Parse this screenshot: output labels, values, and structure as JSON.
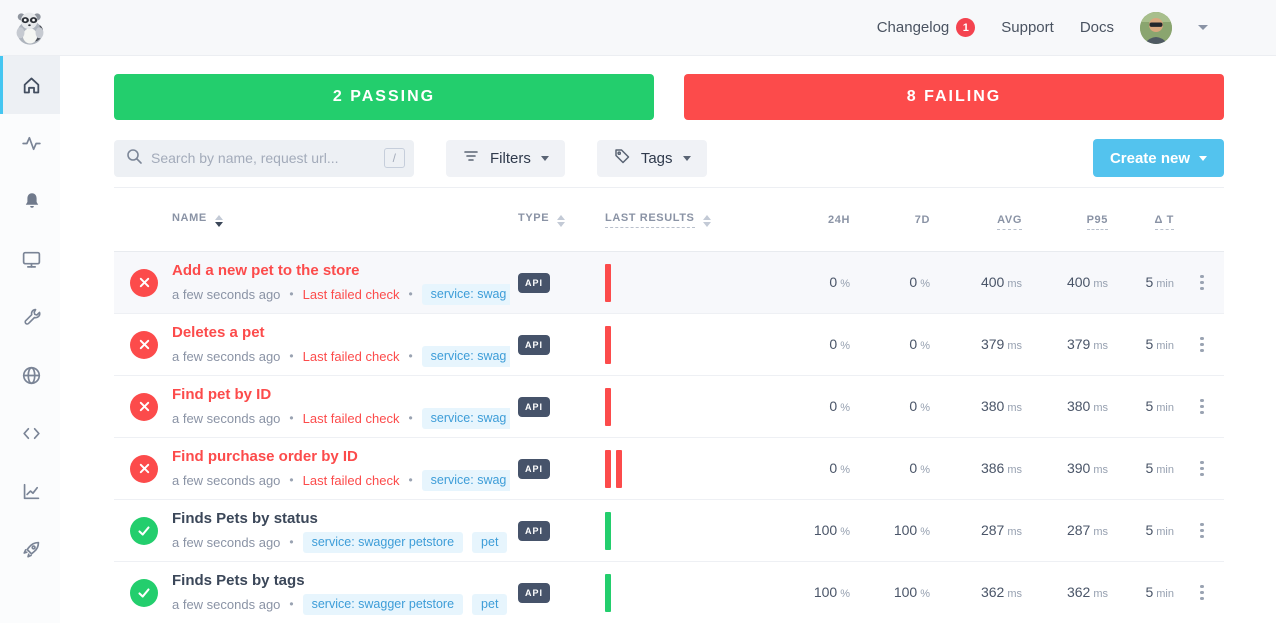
{
  "navbar": {
    "changelog_label": "Changelog",
    "changelog_badge": "1",
    "support_label": "Support",
    "docs_label": "Docs"
  },
  "sidebar": {
    "items": [
      {
        "icon": "home",
        "active": true
      },
      {
        "icon": "activity",
        "active": false
      },
      {
        "icon": "bell",
        "active": false
      },
      {
        "icon": "monitor",
        "active": false
      },
      {
        "icon": "wrench",
        "active": false
      },
      {
        "icon": "globe",
        "active": false
      },
      {
        "icon": "code",
        "active": false
      },
      {
        "icon": "chart",
        "active": false
      },
      {
        "icon": "rocket",
        "active": false
      }
    ]
  },
  "summary": {
    "passing_label": "2 PASSING",
    "failing_label": "8 FAILING"
  },
  "toolbar": {
    "search_placeholder": "Search by name, request url...",
    "search_shortcut": "/",
    "filters_label": "Filters",
    "tags_label": "Tags",
    "create_new_label": "Create new"
  },
  "table": {
    "headers": {
      "name": "NAME",
      "type": "TYPE",
      "last_results": "LAST RESULTS",
      "h24": "24H",
      "d7": "7D",
      "avg": "AVG",
      "p95": "P95",
      "delta_t": "Δ T"
    },
    "units": {
      "h24": "%",
      "d7": "%",
      "avg": "ms",
      "p95": "ms",
      "delta_t": "min"
    },
    "rows": [
      {
        "name": "Add a new pet to the store",
        "status": "failing",
        "updated": "a few seconds ago",
        "note": "Last failed check",
        "tags": [
          "service: swag"
        ],
        "type": "API",
        "results": [
          "failing"
        ],
        "h24": "0",
        "d7": "0",
        "avg": "400",
        "p95": "400",
        "delta_t": "5",
        "highlighted": true
      },
      {
        "name": "Deletes a pet",
        "status": "failing",
        "updated": "a few seconds ago",
        "note": "Last failed check",
        "tags": [
          "service: swag"
        ],
        "type": "API",
        "results": [
          "failing"
        ],
        "h24": "0",
        "d7": "0",
        "avg": "379",
        "p95": "379",
        "delta_t": "5",
        "highlighted": false
      },
      {
        "name": "Find pet by ID",
        "status": "failing",
        "updated": "a few seconds ago",
        "note": "Last failed check",
        "tags": [
          "service: swag"
        ],
        "type": "API",
        "results": [
          "failing"
        ],
        "h24": "0",
        "d7": "0",
        "avg": "380",
        "p95": "380",
        "delta_t": "5",
        "highlighted": false
      },
      {
        "name": "Find purchase order by ID",
        "status": "failing",
        "updated": "a few seconds ago",
        "note": "Last failed check",
        "tags": [
          "service: swag"
        ],
        "type": "API",
        "results": [
          "failing",
          "failing"
        ],
        "h24": "0",
        "d7": "0",
        "avg": "386",
        "p95": "390",
        "delta_t": "5",
        "highlighted": false
      },
      {
        "name": "Finds Pets by status",
        "status": "passing",
        "updated": "a few seconds ago",
        "note": null,
        "tags": [
          "service: swagger petstore",
          "pet"
        ],
        "type": "API",
        "results": [
          "passing"
        ],
        "h24": "100",
        "d7": "100",
        "avg": "287",
        "p95": "287",
        "delta_t": "5",
        "highlighted": false
      },
      {
        "name": "Finds Pets by tags",
        "status": "passing",
        "updated": "a few seconds ago",
        "note": null,
        "tags": [
          "service: swagger petstore",
          "pet"
        ],
        "type": "API",
        "results": [
          "passing"
        ],
        "h24": "100",
        "d7": "100",
        "avg": "362",
        "p95": "362",
        "delta_t": "5",
        "highlighted": false
      }
    ]
  },
  "colors": {
    "passing_green": "#23ce6d",
    "failing_red": "#fc4b4b",
    "accent_blue": "#53c3ee",
    "tag_blue": "#3d9dd8"
  }
}
